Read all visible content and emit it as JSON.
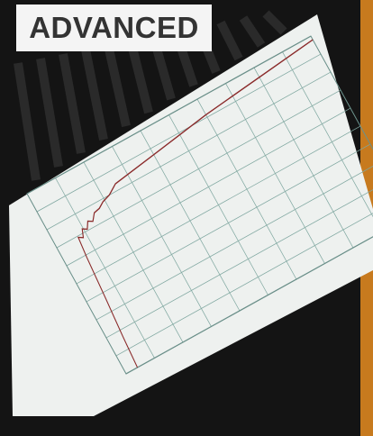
{
  "label": "ADVANCED"
}
